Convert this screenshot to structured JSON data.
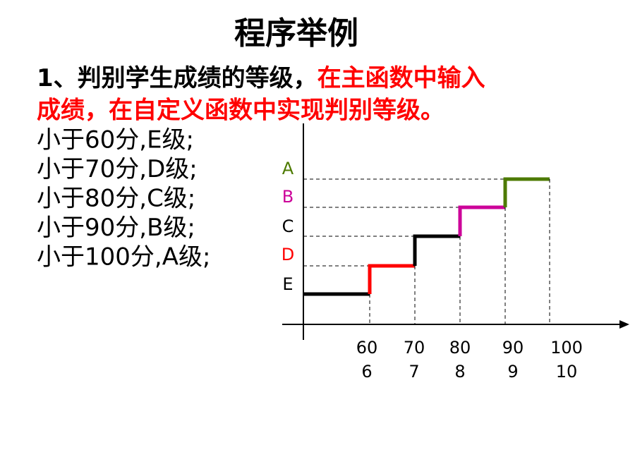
{
  "title": "程序举例",
  "intro": {
    "lead": "1、判别学生成绩的等级，",
    "highlight": "在主函数中输入",
    "line2": "成绩，在自定义函数中实现判别等级。"
  },
  "rules": [
    "小于60分,E级;",
    "小于70分,D级;",
    "小于80分,C级;",
    "小于90分,B级;",
    "小于100分,A级;"
  ],
  "diagram": {
    "levels": [
      {
        "label": "E",
        "color": "#000000"
      },
      {
        "label": "D",
        "color": "#ff0000"
      },
      {
        "label": "C",
        "color": "#000000"
      },
      {
        "label": "B",
        "color": "#cc0099"
      },
      {
        "label": "A",
        "color": "#4d7a00"
      }
    ],
    "ticks": [
      {
        "score": "60",
        "index": "6"
      },
      {
        "score": "70",
        "index": "7"
      },
      {
        "score": "80",
        "index": "8"
      },
      {
        "score": "90",
        "index": "9"
      },
      {
        "score": "100",
        "index": "10"
      }
    ]
  }
}
